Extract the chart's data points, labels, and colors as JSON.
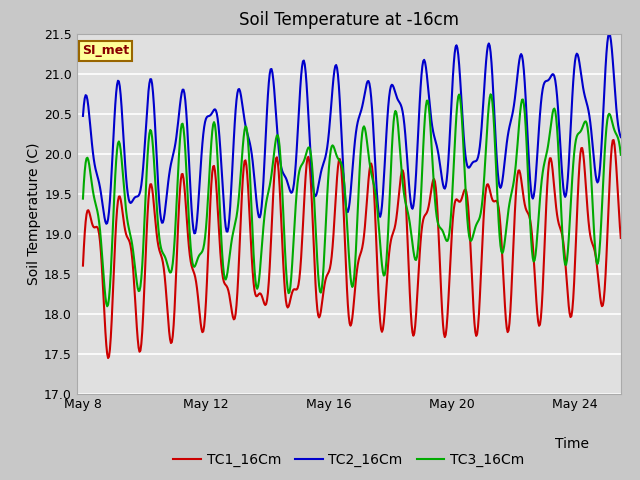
{
  "title": "Soil Temperature at -16cm",
  "xlabel": "Time",
  "ylabel": "Soil Temperature (C)",
  "ylim": [
    17.0,
    21.5
  ],
  "xtick_labels": [
    "May 8",
    "May 12",
    "May 16",
    "May 20",
    "May 24"
  ],
  "xtick_positions": [
    0,
    4,
    8,
    12,
    16
  ],
  "line_colors": [
    "#cc0000",
    "#0000cc",
    "#00aa00"
  ],
  "legend_labels": [
    "TC1_16Cm",
    "TC2_16Cm",
    "TC3_16Cm"
  ],
  "annotation_text": "SI_met",
  "annotation_bg": "#ffff99",
  "annotation_border": "#996600",
  "title_fontsize": 12,
  "axis_fontsize": 10,
  "tick_fontsize": 9,
  "legend_fontsize": 10,
  "fig_facecolor": "#c8c8c8",
  "ax_facecolor": "#e0e0e0",
  "grid_color": "#ffffff",
  "linewidth": 1.5
}
